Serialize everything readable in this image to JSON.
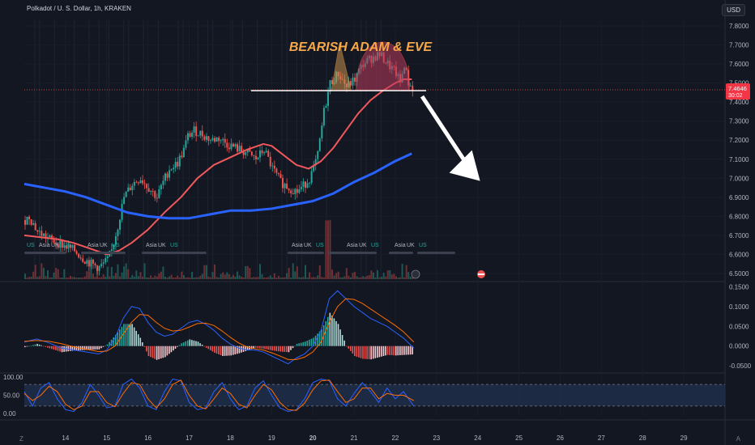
{
  "header": {
    "symbol_title": "Polkadot / U. S. Dollar, 1h, KRAKEN",
    "currency": "USD",
    "brand_glyph": "Z",
    "auto_label": "A"
  },
  "annotation": {
    "pattern_label": "BEARISH ADAM & EVE"
  },
  "colors": {
    "background": "#131722",
    "up": "#26a69a",
    "down": "#ef5350",
    "ma_fast": "#f0585c",
    "ma_slow": "#2962ff",
    "label_orange": "#f7a749",
    "macd_line": "#2962ff",
    "signal_line": "#ff6d00",
    "stoch_k": "#2962ff",
    "stoch_d": "#ff6d00",
    "stoch_band": "#21304d"
  },
  "sessions": {
    "labels": [
      "US",
      "Asia",
      "UK",
      "US",
      "Asia",
      "UK",
      "US",
      "Asia",
      "UK",
      "US",
      "Asia",
      "UK",
      "US",
      "Asia",
      "UK",
      "US",
      "Asia",
      "UK",
      "US"
    ]
  },
  "chart_data": [
    {
      "type": "candlestick",
      "panel": "price",
      "symbol": "Polkadot / U. S. Dollar, 1h, KRAKEN",
      "x_ticks": [
        "14",
        "15",
        "16",
        "17",
        "18",
        "19",
        "20",
        "21",
        "22",
        "23",
        "24",
        "25",
        "26",
        "27",
        "28",
        "29"
      ],
      "x_range": [
        13.0,
        30.0
      ],
      "y_ticks": [
        "6.5000",
        "6.6000",
        "6.7000",
        "6.8000",
        "6.9000",
        "7.0000",
        "7.1000",
        "7.2000",
        "7.3000",
        "7.4000",
        "7.5000",
        "7.6000",
        "7.7000",
        "7.8000"
      ],
      "ylim": [
        6.47,
        7.83
      ],
      "last_price": "7.4646",
      "countdown": "30:02",
      "neckline": 7.46,
      "close_path_x": [
        13.0,
        13.1,
        13.3,
        13.6,
        13.9,
        14.2,
        14.4,
        14.6,
        14.8,
        15.0,
        15.1,
        15.25,
        15.4,
        15.6,
        15.8,
        16.0,
        16.2,
        16.35,
        16.5,
        16.7,
        16.85,
        16.95,
        17.1,
        17.3,
        17.5,
        17.7,
        17.9,
        18.1,
        18.4,
        18.6,
        18.8,
        19.0,
        19.2,
        19.4,
        19.6,
        19.75,
        19.9,
        20.0,
        20.1,
        20.25,
        20.4,
        20.6,
        20.8,
        21.0,
        21.2,
        21.4,
        21.6,
        21.8,
        22.0,
        22.1,
        22.2,
        22.3,
        22.45
      ],
      "close_path_y": [
        6.78,
        6.8,
        6.72,
        6.68,
        6.65,
        6.62,
        6.58,
        6.55,
        6.53,
        6.57,
        6.62,
        6.75,
        6.9,
        6.97,
        7.0,
        6.95,
        6.9,
        6.98,
        7.05,
        7.08,
        7.15,
        7.22,
        7.25,
        7.23,
        7.2,
        7.21,
        7.18,
        7.16,
        7.13,
        7.1,
        7.15,
        7.05,
        6.98,
        6.95,
        6.93,
        6.96,
        7.0,
        7.05,
        7.12,
        7.35,
        7.5,
        7.55,
        7.48,
        7.52,
        7.6,
        7.63,
        7.65,
        7.6,
        7.55,
        7.5,
        7.6,
        7.5,
        7.46
      ],
      "series": [
        {
          "name": "",
          "kind": "ma_fast",
          "x": [
            13.0,
            13.4,
            13.8,
            14.2,
            14.6,
            15.0,
            15.3,
            15.6,
            16.0,
            16.4,
            16.8,
            17.2,
            17.6,
            18.0,
            18.4,
            18.8,
            19.0,
            19.3,
            19.6,
            19.9,
            20.2,
            20.5,
            20.8,
            21.1,
            21.4,
            21.7,
            22.0,
            22.2,
            22.4
          ],
          "values": [
            6.7,
            6.69,
            6.68,
            6.66,
            6.63,
            6.6,
            6.62,
            6.66,
            6.73,
            6.82,
            6.9,
            7.0,
            7.07,
            7.11,
            7.15,
            7.18,
            7.17,
            7.12,
            7.07,
            7.05,
            7.09,
            7.16,
            7.25,
            7.34,
            7.41,
            7.46,
            7.5,
            7.52,
            7.52
          ]
        },
        {
          "name": "",
          "kind": "ma_slow",
          "x": [
            13.0,
            13.5,
            14.0,
            14.5,
            15.0,
            15.5,
            16.0,
            16.5,
            17.0,
            17.5,
            18.0,
            18.5,
            19.0,
            19.5,
            20.0,
            20.5,
            21.0,
            21.5,
            22.0,
            22.4
          ],
          "values": [
            6.97,
            6.95,
            6.93,
            6.9,
            6.86,
            6.82,
            6.8,
            6.79,
            6.79,
            6.81,
            6.83,
            6.83,
            6.84,
            6.86,
            6.88,
            6.92,
            6.98,
            7.03,
            7.09,
            7.13
          ]
        }
      ]
    },
    {
      "type": "bar",
      "panel": "volume",
      "note_values": "relative volume"
    },
    {
      "type": "line",
      "panel": "macd",
      "y_ticks": [
        "-0.0500",
        "0.0000",
        "0.0500",
        "0.1000",
        "0.1500"
      ],
      "ylim": [
        -0.062,
        0.155
      ],
      "x": [
        13.0,
        13.3,
        13.6,
        13.9,
        14.2,
        14.5,
        14.8,
        15.0,
        15.2,
        15.4,
        15.6,
        15.8,
        16.0,
        16.2,
        16.4,
        16.6,
        16.8,
        17.0,
        17.2,
        17.4,
        17.6,
        17.8,
        18.0,
        18.2,
        18.4,
        18.6,
        18.8,
        19.0,
        19.2,
        19.4,
        19.6,
        19.8,
        20.0,
        20.2,
        20.4,
        20.6,
        20.8,
        21.0,
        21.2,
        21.4,
        21.6,
        21.8,
        22.0,
        22.2,
        22.45
      ],
      "series": [
        {
          "name": "",
          "kind": "macd",
          "values": [
            0.01,
            0.018,
            0.008,
            -0.005,
            -0.01,
            -0.015,
            -0.02,
            -0.01,
            0.02,
            0.07,
            0.1,
            0.095,
            0.06,
            0.035,
            0.025,
            0.03,
            0.045,
            0.06,
            0.065,
            0.055,
            0.04,
            0.02,
            0.005,
            -0.005,
            -0.01,
            -0.01,
            -0.015,
            -0.025,
            -0.035,
            -0.045,
            -0.03,
            -0.02,
            0.0,
            0.04,
            0.12,
            0.14,
            0.12,
            0.1,
            0.085,
            0.07,
            0.06,
            0.05,
            0.035,
            0.02,
            -0.005
          ]
        },
        {
          "name": "",
          "kind": "signal",
          "values": [
            0.012,
            0.014,
            0.012,
            0.006,
            -0.002,
            -0.008,
            -0.014,
            -0.013,
            0.0,
            0.03,
            0.06,
            0.08,
            0.078,
            0.06,
            0.045,
            0.038,
            0.04,
            0.048,
            0.057,
            0.058,
            0.052,
            0.038,
            0.022,
            0.008,
            -0.002,
            -0.007,
            -0.01,
            -0.017,
            -0.025,
            -0.034,
            -0.034,
            -0.028,
            -0.015,
            0.01,
            0.06,
            0.1,
            0.12,
            0.118,
            0.108,
            0.094,
            0.08,
            0.066,
            0.052,
            0.036,
            0.01
          ]
        }
      ]
    },
    {
      "type": "line",
      "panel": "stochastic",
      "y_ticks": [
        "0.00",
        "50.00",
        "100.00"
      ],
      "ylim": [
        -5,
        105
      ],
      "band": [
        20,
        80
      ],
      "x": [
        13.0,
        13.2,
        13.4,
        13.6,
        13.8,
        14.0,
        14.2,
        14.4,
        14.6,
        14.8,
        15.0,
        15.2,
        15.4,
        15.6,
        15.8,
        16.0,
        16.2,
        16.4,
        16.6,
        16.8,
        17.0,
        17.2,
        17.4,
        17.6,
        17.8,
        18.0,
        18.2,
        18.4,
        18.6,
        18.8,
        19.0,
        19.2,
        19.4,
        19.6,
        19.8,
        20.0,
        20.2,
        20.4,
        20.6,
        20.8,
        21.0,
        21.2,
        21.4,
        21.6,
        21.8,
        22.0,
        22.2,
        22.45
      ],
      "series": [
        {
          "name": "",
          "kind": "stoch_k",
          "values": [
            60,
            20,
            70,
            85,
            40,
            10,
            5,
            30,
            80,
            50,
            15,
            20,
            80,
            95,
            70,
            20,
            10,
            60,
            95,
            90,
            30,
            10,
            15,
            60,
            85,
            40,
            10,
            20,
            70,
            90,
            50,
            15,
            5,
            10,
            40,
            85,
            95,
            90,
            40,
            20,
            55,
            85,
            60,
            30,
            70,
            40,
            60,
            20
          ]
        },
        {
          "name": "",
          "kind": "stoch_d",
          "values": [
            55,
            35,
            50,
            75,
            60,
            25,
            10,
            20,
            60,
            60,
            30,
            18,
            55,
            85,
            80,
            40,
            15,
            40,
            80,
            92,
            50,
            20,
            12,
            40,
            70,
            55,
            25,
            15,
            50,
            80,
            65,
            30,
            10,
            8,
            28,
            65,
            90,
            92,
            60,
            30,
            40,
            70,
            70,
            40,
            55,
            50,
            50,
            35
          ]
        }
      ]
    }
  ]
}
